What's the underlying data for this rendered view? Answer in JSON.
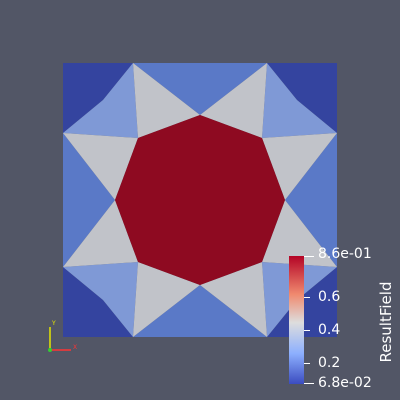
{
  "viewport": {
    "background": "#525666",
    "field_colors": {
      "low": "#34449f",
      "mid_low": "#5a79c7",
      "mid": "#7f99d6",
      "grey": "#c1c3c9",
      "high": "#8e0a21"
    }
  },
  "colorbar": {
    "title": "ResultField",
    "max_label": "8.6e-01",
    "min_label": "6.8e-02",
    "ticks": [
      "0.6",
      "0.4",
      "0.2"
    ],
    "range": [
      0.068,
      0.86
    ],
    "colormap": [
      "#b40426",
      "#f08a6f",
      "#dddddd",
      "#8db0fe",
      "#3b4cc0"
    ]
  },
  "orientation_axes": {
    "y_label": "Y",
    "x_label": "X",
    "y_color": "#e5e500",
    "x_color": "#ff3333",
    "z_color": "#33cc33"
  }
}
